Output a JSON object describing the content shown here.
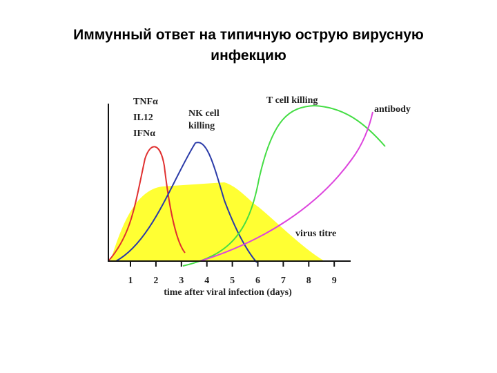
{
  "header": {
    "title": [
      "Иммунный ответ на типичную острую вирусную",
      "инфекцию"
    ]
  },
  "diagram": {
    "labels": {
      "tnf": "TNFα",
      "il12": "IL12",
      "ifn": "IFNα",
      "nk": [
        "NK cell",
        "killing"
      ],
      "tcell": "T cell killing",
      "antibody": "antibody",
      "virus": "virus titre"
    },
    "x_axis": {
      "ticks": [
        "1",
        "2",
        "3",
        "4",
        "5",
        "6",
        "7",
        "8",
        "9"
      ],
      "label": "time after viral infection (days)"
    }
  }
}
